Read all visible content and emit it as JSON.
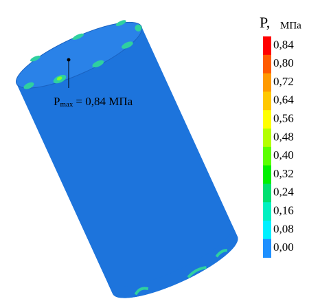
{
  "legend": {
    "title": "P,",
    "unit": "МПа",
    "levels": [
      {
        "label": "0,84",
        "color": "#ff0000"
      },
      {
        "label": "0,80",
        "color": "#ff5a00"
      },
      {
        "label": "0,72",
        "color": "#ff9a00"
      },
      {
        "label": "0,64",
        "color": "#ffc800"
      },
      {
        "label": "0,56",
        "color": "#ffff00"
      },
      {
        "label": "0,48",
        "color": "#b4ff00"
      },
      {
        "label": "0,40",
        "color": "#5aff00"
      },
      {
        "label": "0,32",
        "color": "#00f000"
      },
      {
        "label": "0,24",
        "color": "#00e070"
      },
      {
        "label": "0,16",
        "color": "#00f0c0"
      },
      {
        "label": "0,08",
        "color": "#00f0ff"
      },
      {
        "label": "0,00",
        "color": "#1e90ff"
      }
    ]
  },
  "annotation": {
    "symbol": "P",
    "subscript": "max",
    "text": "= 0,84 МПа"
  }
}
